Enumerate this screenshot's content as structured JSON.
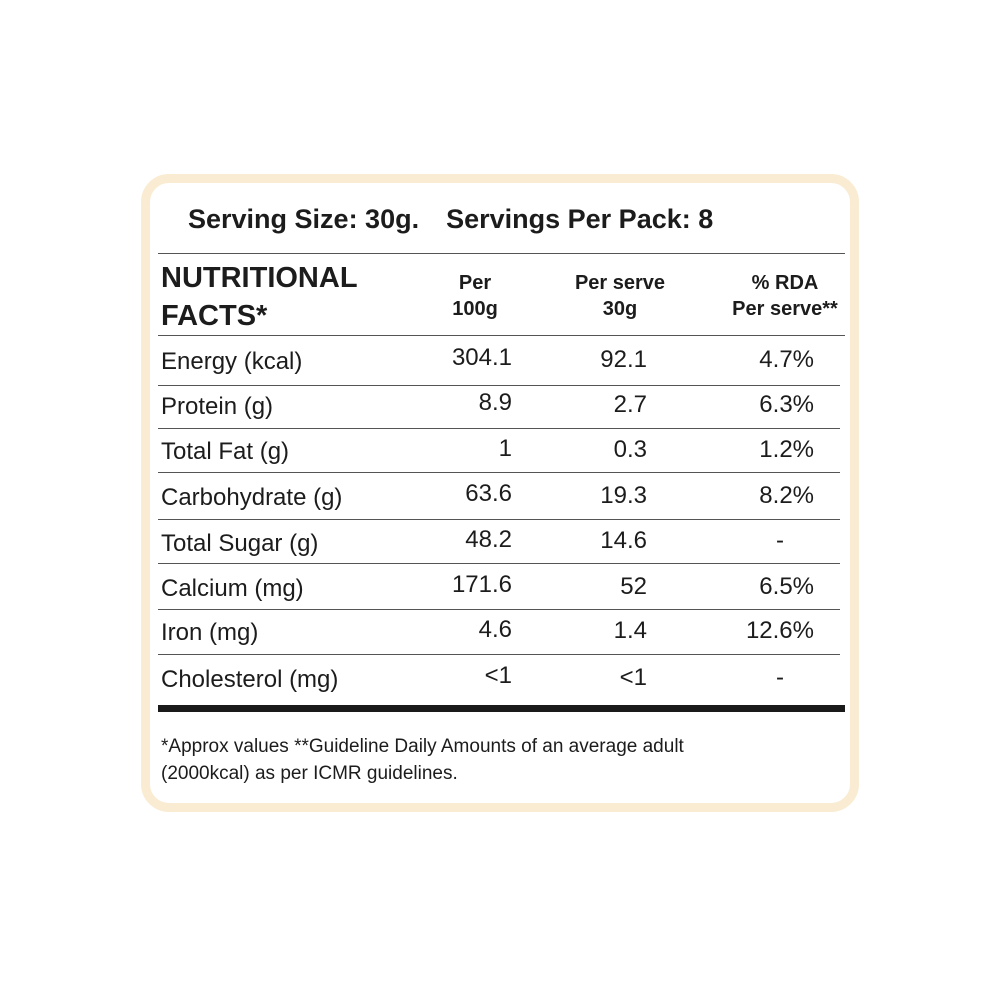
{
  "header": {
    "serving_size": "Serving Size: 30g.",
    "servings_per_pack": "Servings Per Pack: 8"
  },
  "table": {
    "title_line1": "NUTRITIONAL",
    "title_line2": "FACTS*",
    "columns": [
      {
        "line1": "Per",
        "line2": "100g"
      },
      {
        "line1": "Per serve",
        "line2": "30g"
      },
      {
        "line1": "% RDA",
        "line2": "Per serve**"
      }
    ],
    "rows": [
      {
        "label": "Energy (kcal)",
        "per100": "304.1",
        "perserve": "92.1",
        "rda": "4.7%"
      },
      {
        "label": "Protein (g)",
        "per100": "8.9",
        "perserve": "2.7",
        "rda": "6.3%"
      },
      {
        "label": "Total Fat (g)",
        "per100": "1",
        "perserve": "0.3",
        "rda": "1.2%"
      },
      {
        "label": "Carbohydrate (g)",
        "per100": "63.6",
        "perserve": "19.3",
        "rda": "8.2%"
      },
      {
        "label": "Total Sugar (g)",
        "per100": "48.2",
        "perserve": "14.6",
        "rda": "-"
      },
      {
        "label": "Calcium (mg)",
        "per100": "171.6",
        "perserve": "52",
        "rda": "6.5%"
      },
      {
        "label": "Iron (mg)",
        "per100": "4.6",
        "perserve": "1.4",
        "rda": "12.6%"
      },
      {
        "label": "Cholesterol (mg)",
        "per100": "<1",
        "perserve": "<1",
        "rda": "-"
      }
    ]
  },
  "footnote": {
    "line1": "*Approx values **Guideline Daily Amounts of an average adult",
    "line2": "(2000kcal) as per ICMR guidelines."
  }
}
